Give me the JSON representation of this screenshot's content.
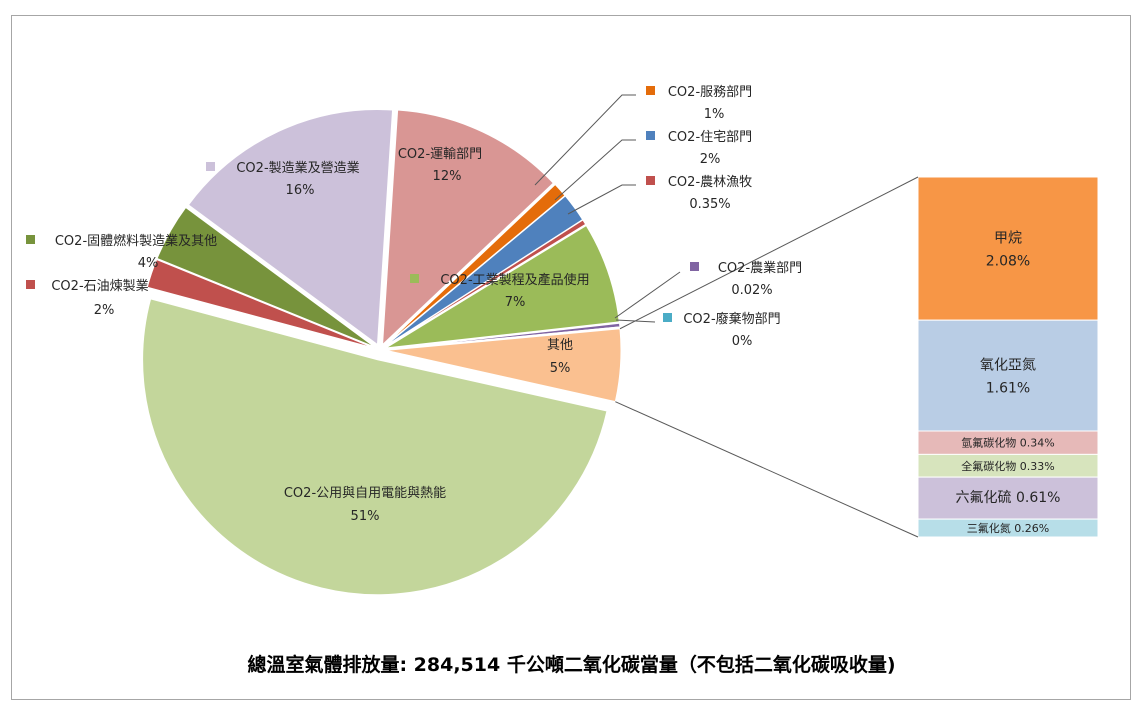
{
  "chart_data": {
    "type": "bar-of-pie",
    "title": "",
    "pie": [
      {
        "name": "CO2-公用與自用電能與熱能",
        "label": "51%",
        "value": 51,
        "color": "#c3d69b",
        "explode": true
      },
      {
        "name": "CO2-石油煉製業",
        "label": "2%",
        "value": 2,
        "color": "#c0504d"
      },
      {
        "name": "CO2-固體燃料製造業及其他",
        "label": "4%",
        "value": 4,
        "color": "#77933c"
      },
      {
        "name": "CO2-製造業及營造業",
        "label": "16%",
        "value": 16,
        "color": "#ccc1da"
      },
      {
        "name": "CO2-運輸部門",
        "label": "12%",
        "value": 12,
        "color": "#d99694"
      },
      {
        "name": "CO2-服務部門",
        "label": "1%",
        "value": 1,
        "color": "#e46c0a"
      },
      {
        "name": "CO2-住宅部門",
        "label": "2%",
        "value": 2,
        "color": "#4f81bd"
      },
      {
        "name": "CO2-農林漁牧",
        "label": "0.35%",
        "value": 0.35,
        "color": "#c0504d"
      },
      {
        "name": "CO2-工業製程及產品使用",
        "label": "7%",
        "value": 7,
        "color": "#9bbb59"
      },
      {
        "name": "CO2-農業部門",
        "label": "0.02%",
        "value": 0.02,
        "color": "#8064a2"
      },
      {
        "name": "CO2-廢棄物部門",
        "label": "0%",
        "value": 0,
        "color": "#4bacc6"
      },
      {
        "name": "其他",
        "label": "5%",
        "value": 5,
        "color": "#fac090"
      }
    ],
    "bar": [
      {
        "name": "甲烷",
        "label": "2.08%",
        "value": 2.08,
        "color": "#f79646"
      },
      {
        "name": "氧化亞氮",
        "label": "1.61%",
        "value": 1.61,
        "color": "#b9cde5"
      },
      {
        "name": "氫氟碳化物",
        "label": "0.34%",
        "value": 0.34,
        "color": "#e6b9b8"
      },
      {
        "name": "全氟碳化物",
        "label": "0.33%",
        "value": 0.33,
        "color": "#d7e4bd"
      },
      {
        "name": "六氟化硫",
        "label": "0.61%",
        "value": 0.61,
        "color": "#ccc1da"
      },
      {
        "name": "三氟化氮",
        "label": "0.26%",
        "value": 0.26,
        "color": "#b7dee8"
      }
    ]
  },
  "footer": {
    "text": "總溫室氣體排放量: 284,514 千公噸二氧化碳當量（不包括二氧化碳吸收量)"
  }
}
